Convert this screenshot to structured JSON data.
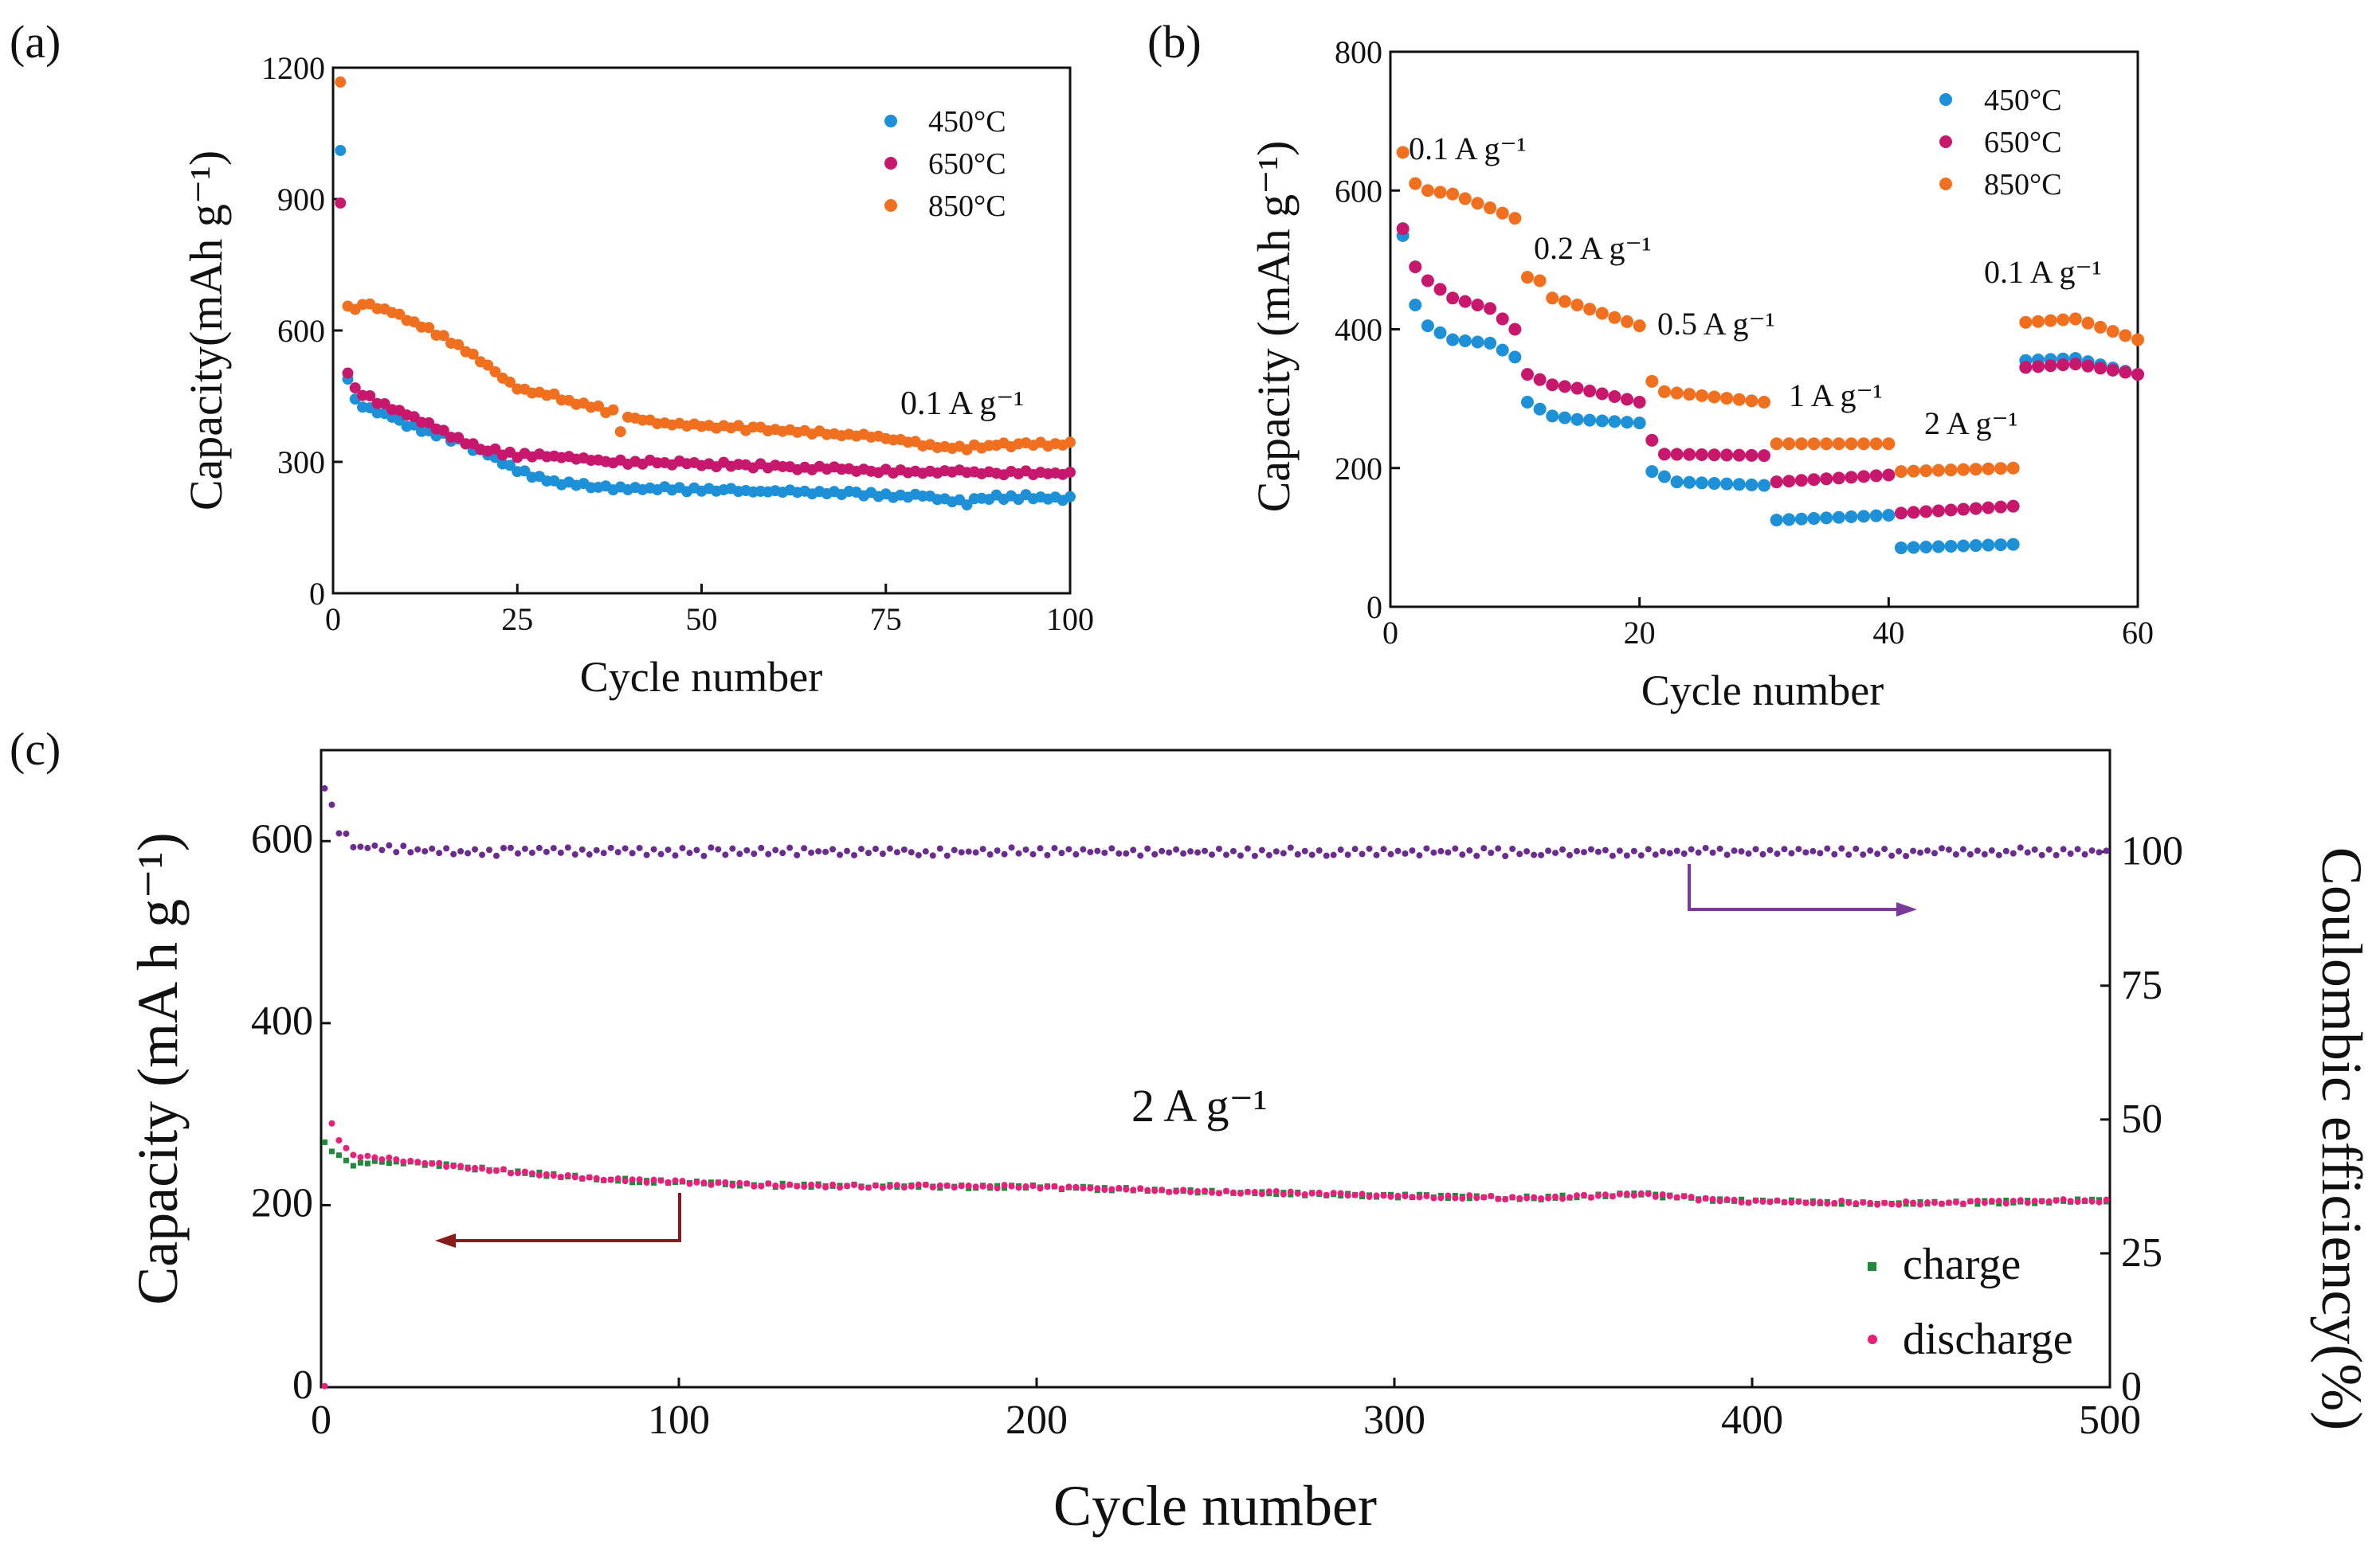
{
  "colors": {
    "c450": "#1E90D8",
    "c650": "#C8186E",
    "c850": "#F07020",
    "charge": "#1E8A3A",
    "discharge": "#E8207A",
    "ce": "#6A2C8E",
    "arrowRed": "#8B1A1A",
    "arrowPurple": "#7A3A9A"
  },
  "chart_data": [
    {
      "id": "a",
      "panel_label": "(a)",
      "type": "scatter",
      "xlabel": "Cycle number",
      "ylabel": "Capacity(mAh g⁻¹)",
      "xlim": [
        0,
        100
      ],
      "ylim": [
        0,
        1200
      ],
      "xticks": [
        "0",
        "25",
        "50",
        "75",
        "100"
      ],
      "yticks": [
        "0",
        "300",
        "600",
        "900",
        "1200"
      ],
      "annotation": "0.1 A g⁻¹",
      "legend": [
        "450°C",
        "650°C",
        "850°C"
      ],
      "series": [
        {
          "name": "450°C",
          "anchors": [
            [
              1,
              1010
            ],
            [
              2,
              490
            ],
            [
              3,
              440
            ],
            [
              5,
              420
            ],
            [
              8,
              405
            ],
            [
              10,
              385
            ],
            [
              15,
              360
            ],
            [
              20,
              325
            ],
            [
              25,
              280
            ],
            [
              30,
              255
            ],
            [
              35,
              245
            ],
            [
              40,
              240
            ],
            [
              50,
              235
            ],
            [
              60,
              232
            ],
            [
              70,
              228
            ],
            [
              80,
              222
            ],
            [
              86,
              205
            ],
            [
              88,
              220
            ],
            [
              95,
              220
            ],
            [
              100,
              215
            ]
          ]
        },
        {
          "name": "650°C",
          "anchors": [
            [
              1,
              895
            ],
            [
              2,
              500
            ],
            [
              3,
              465
            ],
            [
              5,
              445
            ],
            [
              10,
              410
            ],
            [
              15,
              370
            ],
            [
              20,
              330
            ],
            [
              25,
              315
            ],
            [
              30,
              312
            ],
            [
              35,
              305
            ],
            [
              40,
              300
            ],
            [
              50,
              295
            ],
            [
              60,
              290
            ],
            [
              70,
              283
            ],
            [
              80,
              278
            ],
            [
              90,
              275
            ],
            [
              100,
              272
            ]
          ]
        },
        {
          "name": "850°C",
          "anchors": [
            [
              1,
              1170
            ],
            [
              2,
              650
            ],
            [
              5,
              655
            ],
            [
              8,
              645
            ],
            [
              10,
              628
            ],
            [
              15,
              585
            ],
            [
              20,
              530
            ],
            [
              25,
              470
            ],
            [
              30,
              450
            ],
            [
              35,
              425
            ],
            [
              38,
              415
            ],
            [
              39,
              372
            ],
            [
              40,
              400
            ],
            [
              45,
              388
            ],
            [
              50,
              382
            ],
            [
              60,
              372
            ],
            [
              70,
              360
            ],
            [
              75,
              355
            ],
            [
              80,
              340
            ],
            [
              85,
              330
            ],
            [
              90,
              338
            ],
            [
              100,
              340
            ]
          ]
        }
      ]
    },
    {
      "id": "b",
      "panel_label": "(b)",
      "type": "scatter",
      "xlabel": "Cycle number",
      "ylabel": "Capacity (mAh g⁻¹)",
      "xlim": [
        0,
        60
      ],
      "ylim": [
        0,
        800
      ],
      "xticks": [
        "0",
        "20",
        "40",
        "60"
      ],
      "yticks": [
        "0",
        "200",
        "400",
        "600",
        "800"
      ],
      "legend": [
        "450°C",
        "650°C",
        "850°C"
      ],
      "rate_labels": [
        "0.1 A g⁻¹",
        "0.2 A g⁻¹",
        "0.5 A g⁻¹",
        "1 A g⁻¹",
        "2 A g⁻¹",
        "0.1 A g⁻¹"
      ],
      "series": [
        {
          "name": "450°C",
          "anchors": [
            [
              1,
              535
            ],
            [
              2,
              435
            ],
            [
              3,
              405
            ],
            [
              5,
              385
            ],
            [
              8,
              380
            ],
            [
              10,
              360
            ],
            [
              11,
              295
            ],
            [
              13,
              275
            ],
            [
              15,
              270
            ],
            [
              20,
              265
            ],
            [
              21,
              195
            ],
            [
              23,
              180
            ],
            [
              30,
              175
            ],
            [
              31,
              125
            ],
            [
              40,
              132
            ],
            [
              41,
              85
            ],
            [
              50,
              90
            ],
            [
              51,
              355
            ],
            [
              55,
              358
            ],
            [
              60,
              335
            ]
          ]
        },
        {
          "name": "650°C",
          "anchors": [
            [
              1,
              545
            ],
            [
              2,
              490
            ],
            [
              3,
              470
            ],
            [
              5,
              445
            ],
            [
              8,
              430
            ],
            [
              10,
              400
            ],
            [
              11,
              335
            ],
            [
              13,
              320
            ],
            [
              15,
              315
            ],
            [
              20,
              295
            ],
            [
              21,
              240
            ],
            [
              22,
              220
            ],
            [
              30,
              218
            ],
            [
              31,
              180
            ],
            [
              40,
              190
            ],
            [
              41,
              135
            ],
            [
              50,
              145
            ],
            [
              51,
              345
            ],
            [
              55,
              350
            ],
            [
              60,
              335
            ]
          ]
        },
        {
          "name": "850°C",
          "anchors": [
            [
              1,
              655
            ],
            [
              2,
              610
            ],
            [
              3,
              600
            ],
            [
              5,
              595
            ],
            [
              8,
              575
            ],
            [
              10,
              560
            ],
            [
              11,
              475
            ],
            [
              12,
              470
            ],
            [
              13,
              445
            ],
            [
              15,
              435
            ],
            [
              20,
              405
            ],
            [
              21,
              325
            ],
            [
              22,
              310
            ],
            [
              30,
              295
            ],
            [
              31,
              235
            ],
            [
              40,
              235
            ],
            [
              41,
              195
            ],
            [
              50,
              200
            ],
            [
              51,
              410
            ],
            [
              55,
              415
            ],
            [
              60,
              385
            ]
          ]
        }
      ]
    },
    {
      "id": "c",
      "panel_label": "(c)",
      "type": "scatter",
      "xlabel": "Cycle number",
      "ylabel": "Capacity (mA h g⁻¹)",
      "y2label": "Coulombic efficiency(%)",
      "xlim": [
        0,
        500
      ],
      "ylim": [
        0,
        700
      ],
      "y2lim": [
        0,
        119
      ],
      "xticks": [
        "0",
        "100",
        "200",
        "300",
        "400",
        "500"
      ],
      "yticks": [
        "0",
        "200",
        "400",
        "600"
      ],
      "y2ticks": [
        "0",
        "25",
        "50",
        "75",
        "100"
      ],
      "annotation": "2 A g⁻¹",
      "legend": [
        "charge",
        "discharge"
      ],
      "series": [
        {
          "name": "charge",
          "anchors": [
            [
              1,
              268
            ],
            [
              3,
              260
            ],
            [
              8,
              245
            ],
            [
              20,
              248
            ],
            [
              30,
              245
            ],
            [
              50,
              238
            ],
            [
              80,
              228
            ],
            [
              120,
              222
            ],
            [
              200,
              220
            ],
            [
              250,
              215
            ],
            [
              300,
              210
            ],
            [
              340,
              208
            ],
            [
              370,
              212
            ],
            [
              390,
              205
            ],
            [
              440,
              202
            ],
            [
              500,
              205
            ]
          ]
        },
        {
          "name": "discharge",
          "anchors": [
            [
              1,
              0
            ],
            [
              2,
              298
            ],
            [
              4,
              278
            ],
            [
              8,
              255
            ],
            [
              20,
              250
            ],
            [
              30,
              246
            ],
            [
              50,
              238
            ],
            [
              80,
              228
            ],
            [
              120,
              222
            ],
            [
              200,
              220
            ],
            [
              250,
              215
            ],
            [
              300,
              210
            ],
            [
              340,
              208
            ],
            [
              370,
              212
            ],
            [
              390,
              205
            ],
            [
              440,
              202
            ],
            [
              500,
              205
            ]
          ]
        },
        {
          "name": "Coulombic efficiency",
          "axis": "right",
          "anchors": [
            [
              1,
              112
            ],
            [
              2,
              110
            ],
            [
              5,
              104
            ],
            [
              10,
              101
            ],
            [
              20,
              100.5
            ],
            [
              40,
              100
            ],
            [
              500,
              100
            ]
          ]
        }
      ]
    }
  ]
}
